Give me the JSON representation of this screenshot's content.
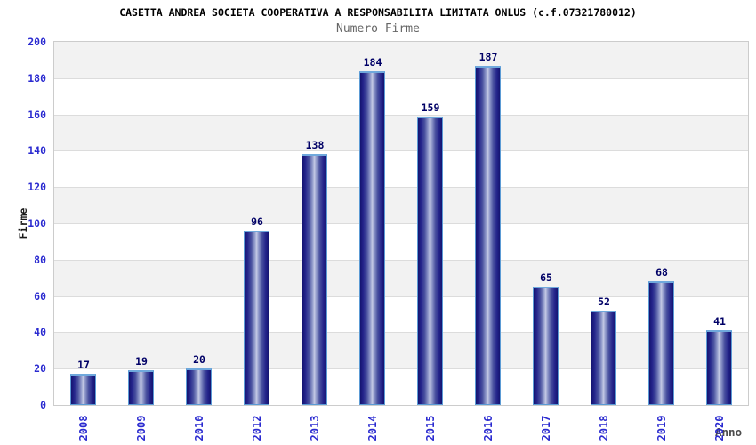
{
  "chart_data": {
    "type": "bar",
    "title": "CASETTA ANDREA SOCIETA COOPERATIVA A RESPONSABILITA LIMITATA ONLUS (c.f.07321780012)",
    "subtitle": "Numero Firme",
    "xlabel": "Anno",
    "ylabel": "Firme",
    "categories": [
      "2008",
      "2009",
      "2010",
      "2012",
      "2013",
      "2014",
      "2015",
      "2016",
      "2017",
      "2018",
      "2019",
      "2020"
    ],
    "values": [
      17,
      19,
      20,
      96,
      138,
      184,
      159,
      187,
      65,
      52,
      68,
      41
    ],
    "ylim": [
      0,
      200
    ],
    "ytick_step": 20,
    "grid": "horizontal alternating bands every 20 units",
    "legend_position": "none",
    "bar_value_labels": true,
    "x_tick_rotation_deg": 90,
    "colors": {
      "bar_edge_dark": "#141470",
      "bar_center_light": "#c6cbe6",
      "bar_border": "#5b9bd5",
      "bar_cap": "#6fa8dc",
      "tick_label_blue": "#2a2ad0",
      "value_label_navy": "#000066",
      "title_color": "#000000",
      "subtitle_color": "#666666",
      "axis_title_color": "#4d4d4d",
      "band_gray": "#f2f2f2",
      "band_white": "#ffffff",
      "gridline": "#dcdcdc",
      "plot_border": "#cccccc",
      "background": "#ffffff"
    }
  }
}
